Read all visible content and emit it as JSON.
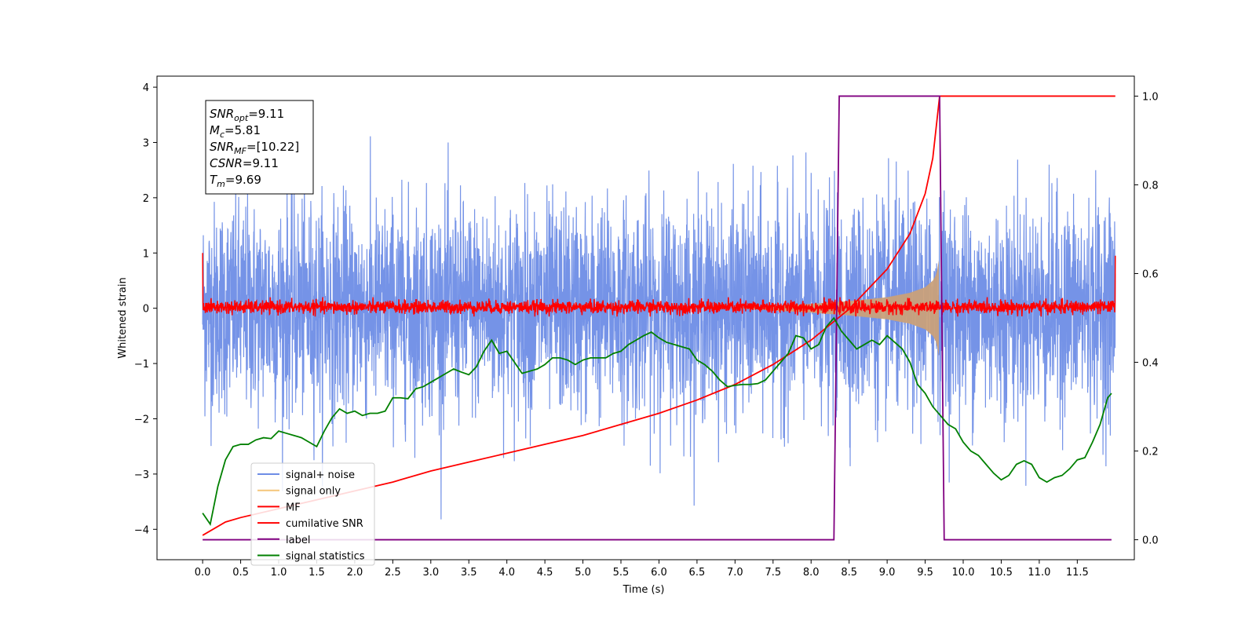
{
  "chart_data": {
    "type": "line",
    "xlabel": "Time (s)",
    "ylabel": "Whitened strain",
    "xlim": [
      -0.6,
      12.25
    ],
    "ylim": [
      -4.55,
      4.2
    ],
    "y2lim": [
      -0.045,
      1.045
    ],
    "x_ticks": [
      "0.0",
      "0.5",
      "1.0",
      "1.5",
      "2.0",
      "2.5",
      "3.0",
      "3.5",
      "4.0",
      "4.5",
      "5.0",
      "5.5",
      "6.0",
      "6.5",
      "7.0",
      "7.5",
      "8.0",
      "8.5",
      "9.0",
      "9.5",
      "10.0",
      "10.5",
      "11.0",
      "11.5"
    ],
    "y_ticks": [
      "4",
      "3",
      "2",
      "1",
      "0",
      "−1",
      "−2",
      "−3",
      "−4"
    ],
    "y2_ticks": [
      "1.0",
      "0.8",
      "0.6",
      "0.4",
      "0.2",
      "0.0"
    ],
    "grid": false,
    "legend_placement": "lower-left",
    "annotation": {
      "lines": [
        {
          "var": "SNR",
          "sub": "opt",
          "value": "=9.11"
        },
        {
          "var": "M",
          "sub": "c",
          "value": "=5.81"
        },
        {
          "var": "SNR",
          "sub": "MF",
          "value": "=[10.22]"
        },
        {
          "var": "CSNR",
          "sub": "",
          "value": "=9.11"
        },
        {
          "var": "T",
          "sub": "m",
          "value": "=9.69"
        }
      ]
    },
    "series": [
      {
        "name": "signal+ noise",
        "axis": "left",
        "color": "#6e8de6",
        "kind": "noise_band",
        "x_range": [
          0.0,
          12.0
        ],
        "approx_range": [
          -4.1,
          3.6
        ],
        "typical_std": 1.0
      },
      {
        "name": "signal only",
        "axis": "left",
        "color": "#f5c67a",
        "kind": "chirp_envelope",
        "x_range": [
          0.0,
          9.69
        ],
        "envelope": {
          "x": [
            7.0,
            8.0,
            8.5,
            9.0,
            9.3,
            9.5,
            9.6,
            9.65,
            9.69
          ],
          "amp": [
            0.0,
            0.08,
            0.13,
            0.2,
            0.28,
            0.38,
            0.5,
            0.62,
            0.95
          ]
        }
      },
      {
        "name": "MF",
        "axis": "left",
        "color": "#ff0000",
        "kind": "noise_band",
        "x_range": [
          0.0,
          12.0
        ],
        "approx_range": [
          -0.15,
          0.2
        ],
        "edge_values": {
          "start": 1.0,
          "end": 0.95
        }
      },
      {
        "name": "cumilative SNR",
        "axis": "right",
        "color": "#ff0000",
        "x": [
          0.0,
          0.3,
          0.5,
          1.0,
          1.5,
          2.0,
          2.5,
          3.0,
          3.5,
          4.0,
          4.5,
          5.0,
          5.5,
          6.0,
          6.5,
          7.0,
          7.5,
          8.0,
          8.5,
          9.0,
          9.3,
          9.5,
          9.6,
          9.69,
          12.0
        ],
        "y": [
          0.01,
          0.04,
          0.05,
          0.07,
          0.09,
          0.11,
          0.13,
          0.155,
          0.175,
          0.195,
          0.215,
          0.235,
          0.26,
          0.285,
          0.315,
          0.35,
          0.395,
          0.45,
          0.52,
          0.61,
          0.69,
          0.78,
          0.86,
          1.0,
          1.0
        ]
      },
      {
        "name": "label",
        "axis": "right",
        "color": "#800080",
        "x": [
          0.0,
          8.3,
          8.37,
          9.69,
          9.75,
          11.95
        ],
        "y": [
          0.0,
          0.0,
          1.0,
          1.0,
          0.0,
          0.0
        ]
      },
      {
        "name": "signal statistics",
        "axis": "right",
        "color": "#008000",
        "x": [
          0.0,
          0.1,
          0.2,
          0.3,
          0.4,
          0.5,
          0.6,
          0.7,
          0.8,
          0.9,
          1.0,
          1.1,
          1.2,
          1.3,
          1.4,
          1.5,
          1.6,
          1.7,
          1.8,
          1.9,
          2.0,
          2.1,
          2.2,
          2.3,
          2.4,
          2.5,
          2.6,
          2.7,
          2.8,
          2.9,
          3.0,
          3.1,
          3.2,
          3.3,
          3.4,
          3.5,
          3.6,
          3.7,
          3.8,
          3.9,
          4.0,
          4.1,
          4.2,
          4.3,
          4.4,
          4.5,
          4.6,
          4.7,
          4.8,
          4.9,
          5.0,
          5.1,
          5.2,
          5.3,
          5.4,
          5.5,
          5.6,
          5.7,
          5.8,
          5.9,
          6.0,
          6.1,
          6.2,
          6.3,
          6.4,
          6.5,
          6.6,
          6.7,
          6.8,
          6.9,
          7.0,
          7.1,
          7.2,
          7.3,
          7.4,
          7.5,
          7.6,
          7.7,
          7.8,
          7.9,
          8.0,
          8.1,
          8.2,
          8.3,
          8.4,
          8.5,
          8.6,
          8.7,
          8.8,
          8.9,
          9.0,
          9.1,
          9.2,
          9.3,
          9.4,
          9.5,
          9.6,
          9.7,
          9.8,
          9.9,
          10.0,
          10.1,
          10.2,
          10.3,
          10.4,
          10.5,
          10.6,
          10.7,
          10.8,
          10.9,
          11.0,
          11.1,
          11.2,
          11.3,
          11.4,
          11.5,
          11.6,
          11.7,
          11.8,
          11.9,
          11.95
        ],
        "y": [
          0.06,
          0.035,
          0.12,
          0.18,
          0.21,
          0.215,
          0.215,
          0.225,
          0.23,
          0.228,
          0.245,
          0.24,
          0.235,
          0.23,
          0.22,
          0.21,
          0.245,
          0.275,
          0.295,
          0.285,
          0.29,
          0.28,
          0.285,
          0.285,
          0.29,
          0.32,
          0.32,
          0.318,
          0.34,
          0.345,
          0.355,
          0.365,
          0.375,
          0.385,
          0.378,
          0.372,
          0.39,
          0.425,
          0.45,
          0.42,
          0.425,
          0.4,
          0.375,
          0.38,
          0.385,
          0.395,
          0.41,
          0.41,
          0.405,
          0.395,
          0.405,
          0.41,
          0.41,
          0.41,
          0.42,
          0.425,
          0.44,
          0.45,
          0.46,
          0.468,
          0.455,
          0.445,
          0.44,
          0.435,
          0.43,
          0.405,
          0.395,
          0.38,
          0.36,
          0.345,
          0.348,
          0.35,
          0.35,
          0.352,
          0.36,
          0.38,
          0.4,
          0.42,
          0.46,
          0.455,
          0.43,
          0.44,
          0.48,
          0.5,
          0.47,
          0.45,
          0.43,
          0.44,
          0.45,
          0.44,
          0.46,
          0.445,
          0.43,
          0.4,
          0.35,
          0.33,
          0.3,
          0.28,
          0.26,
          0.25,
          0.22,
          0.2,
          0.19,
          0.17,
          0.15,
          0.135,
          0.145,
          0.17,
          0.178,
          0.17,
          0.14,
          0.13,
          0.14,
          0.145,
          0.16,
          0.18,
          0.185,
          0.22,
          0.26,
          0.32,
          0.33
        ]
      }
    ]
  }
}
